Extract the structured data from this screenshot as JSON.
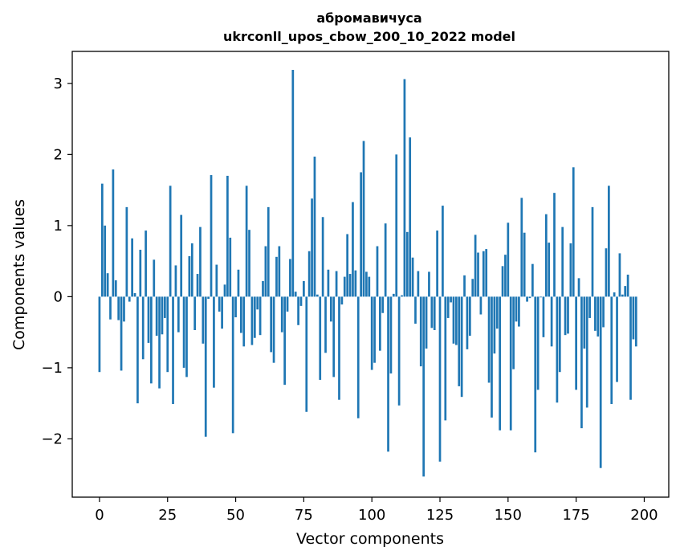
{
  "chart_data": {
    "type": "bar",
    "title": "абромавичуса",
    "subtitle": "ukrconll_upos_cbow_200_10_2022 model",
    "xlabel": "Vector components",
    "ylabel": "Components values",
    "xlim": [
      -10,
      209
    ],
    "ylim": [
      -2.82,
      3.45
    ],
    "xticks": [
      0,
      25,
      50,
      75,
      100,
      125,
      150,
      175,
      200
    ],
    "yticks": [
      -2,
      -1,
      0,
      1,
      2,
      3
    ],
    "bar_color": "#1f77b4",
    "values": [
      -1.06,
      1.59,
      1.0,
      0.33,
      -0.32,
      1.79,
      0.23,
      -0.33,
      -1.04,
      -0.35,
      1.26,
      -0.07,
      0.82,
      0.05,
      -1.5,
      0.66,
      -0.88,
      0.93,
      -0.65,
      -1.22,
      0.52,
      -0.55,
      -1.29,
      -0.53,
      -0.3,
      -1.06,
      1.56,
      -1.51,
      0.44,
      -0.5,
      1.15,
      -1.0,
      -1.13,
      0.57,
      0.75,
      -0.47,
      0.32,
      0.98,
      -0.66,
      -1.97,
      -0.03,
      1.71,
      -1.28,
      0.45,
      -0.21,
      -0.45,
      0.17,
      1.7,
      0.83,
      -1.92,
      -0.29,
      0.38,
      -0.51,
      -0.7,
      1.56,
      0.94,
      -0.68,
      -0.58,
      -0.18,
      -0.54,
      0.22,
      0.71,
      1.26,
      -0.78,
      -0.93,
      0.56,
      0.71,
      -0.5,
      -1.24,
      -0.21,
      0.53,
      3.19,
      0.07,
      -0.4,
      -0.13,
      0.22,
      -1.62,
      0.64,
      1.38,
      1.97,
      0.03,
      -1.17,
      1.12,
      -0.79,
      0.38,
      -0.35,
      -1.13,
      0.36,
      -1.45,
      -0.11,
      0.28,
      0.88,
      0.32,
      1.33,
      0.37,
      -1.71,
      1.75,
      2.19,
      0.35,
      0.28,
      -1.03,
      -0.93,
      0.71,
      -0.76,
      -0.23,
      1.03,
      -2.18,
      -1.08,
      0.04,
      2.0,
      -1.53,
      0.02,
      3.06,
      0.91,
      2.24,
      0.55,
      -0.38,
      0.36,
      -0.98,
      -2.53,
      -0.73,
      0.35,
      -0.44,
      -0.47,
      0.93,
      -2.32,
      1.28,
      -1.74,
      -0.3,
      -0.08,
      -0.66,
      -0.68,
      -1.26,
      -1.41,
      0.3,
      -0.74,
      -0.55,
      0.25,
      0.87,
      0.62,
      -0.25,
      0.64,
      0.67,
      -1.21,
      -1.7,
      -0.8,
      -0.45,
      -1.88,
      0.43,
      0.59,
      1.04,
      -1.88,
      -1.02,
      -0.35,
      -0.42,
      1.39,
      0.9,
      -0.07,
      -0.02,
      0.46,
      -2.19,
      -1.31,
      -0.01,
      -0.57,
      1.16,
      0.76,
      -0.7,
      1.46,
      -1.49,
      -1.06,
      0.98,
      -0.54,
      -0.52,
      0.75,
      1.82,
      -1.31,
      0.26,
      -1.85,
      -0.73,
      -1.56,
      -0.3,
      1.26,
      -0.48,
      -0.56,
      -2.41,
      -0.43,
      0.68,
      1.56,
      -1.51,
      0.06,
      -1.2,
      0.61,
      0.03,
      0.15,
      0.31,
      -1.45,
      -0.6,
      -0.7
    ]
  }
}
